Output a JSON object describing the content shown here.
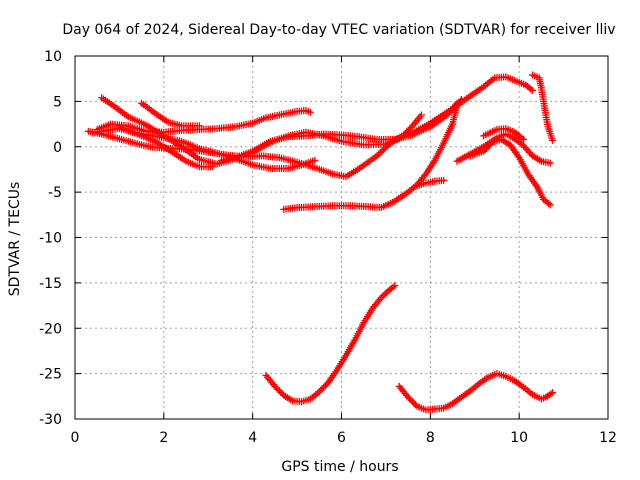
{
  "chart_data": {
    "type": "scatter",
    "title": "Day 064 of 2024, Sidereal Day-to-day VTEC variation (SDTVAR) for receiver lliv",
    "xlabel": "GPS time / hours",
    "ylabel": "SDTVAR / TECUs",
    "xlim": [
      0,
      12
    ],
    "ylim": [
      -30,
      10
    ],
    "xticks": [
      0,
      2,
      4,
      6,
      8,
      10,
      12
    ],
    "yticks": [
      -30,
      -25,
      -20,
      -15,
      -10,
      -5,
      0,
      5,
      10
    ],
    "grid": true,
    "legend": "none",
    "marker": "plus",
    "series_color": "#ff0000",
    "series": [
      {
        "points": [
          [
            0.6,
            5.4
          ],
          [
            0.9,
            4.4
          ],
          [
            1.2,
            3.3
          ],
          [
            1.6,
            2.4
          ],
          [
            2.0,
            1.2
          ],
          [
            2.4,
            0.0
          ],
          [
            2.8,
            -1.4
          ],
          [
            3.2,
            -1.9
          ],
          [
            3.6,
            -1.3
          ],
          [
            4.0,
            -0.6
          ],
          [
            4.4,
            0.5
          ],
          [
            4.8,
            1.2
          ],
          [
            5.2,
            1.6
          ],
          [
            5.6,
            1.2
          ],
          [
            6.0,
            0.6
          ],
          [
            6.5,
            0.2
          ],
          [
            7.0,
            0.3
          ],
          [
            7.6,
            1.5
          ],
          [
            8.0,
            2.6
          ],
          [
            8.5,
            4.2
          ],
          [
            8.9,
            5.6
          ],
          [
            9.2,
            6.6
          ],
          [
            9.45,
            7.6
          ],
          [
            9.7,
            7.7
          ],
          [
            9.95,
            7.2
          ],
          [
            10.15,
            6.8
          ],
          [
            10.3,
            6.2
          ]
        ]
      },
      {
        "points": [
          [
            0.3,
            1.7
          ],
          [
            0.6,
            1.4
          ],
          [
            0.9,
            1.0
          ],
          [
            1.2,
            0.6
          ],
          [
            1.5,
            0.2
          ],
          [
            1.8,
            -0.1
          ],
          [
            2.2,
            -0.2
          ],
          [
            2.6,
            -0.3
          ],
          [
            3.0,
            -0.6
          ],
          [
            3.4,
            -0.9
          ],
          [
            3.8,
            -1.1
          ],
          [
            4.2,
            -1.0
          ],
          [
            4.6,
            -1.2
          ],
          [
            5.0,
            -1.7
          ],
          [
            5.4,
            -2.3
          ],
          [
            5.8,
            -3.0
          ],
          [
            6.1,
            -3.3
          ],
          [
            6.4,
            -2.4
          ],
          [
            6.8,
            -1.0
          ],
          [
            7.1,
            0.4
          ],
          [
            7.4,
            1.3
          ],
          [
            7.6,
            2.3
          ],
          [
            7.8,
            3.5
          ]
        ]
      },
      {
        "points": [
          [
            0.5,
            1.9
          ],
          [
            0.8,
            2.5
          ],
          [
            1.2,
            2.3
          ],
          [
            1.6,
            1.7
          ],
          [
            2.0,
            1.6
          ],
          [
            2.4,
            1.8
          ],
          [
            2.8,
            1.9
          ],
          [
            3.2,
            2.0
          ],
          [
            3.6,
            2.2
          ],
          [
            4.0,
            2.6
          ],
          [
            4.3,
            3.2
          ],
          [
            4.7,
            3.6
          ],
          [
            5.0,
            3.9
          ],
          [
            5.2,
            4.0
          ],
          [
            5.3,
            3.8
          ]
        ]
      },
      {
        "points": [
          [
            0.4,
            1.5
          ],
          [
            0.7,
            1.8
          ],
          [
            1.0,
            2.0
          ],
          [
            1.3,
            1.6
          ],
          [
            1.6,
            1.3
          ],
          [
            2.0,
            1.0
          ],
          [
            2.4,
            0.6
          ],
          [
            2.8,
            -0.2
          ],
          [
            3.2,
            -0.7
          ],
          [
            3.6,
            -1.3
          ],
          [
            4.0,
            -2.0
          ],
          [
            4.4,
            -2.4
          ],
          [
            4.8,
            -2.4
          ],
          [
            5.1,
            -2.0
          ],
          [
            5.4,
            -1.5
          ]
        ]
      },
      {
        "points": [
          [
            1.5,
            4.8
          ],
          [
            1.8,
            3.7
          ],
          [
            2.1,
            2.7
          ],
          [
            2.4,
            2.3
          ],
          [
            2.8,
            2.3
          ]
        ]
      },
      {
        "points": [
          [
            1.0,
            2.2
          ],
          [
            1.4,
            1.4
          ],
          [
            1.8,
            0.6
          ],
          [
            2.2,
            -0.6
          ],
          [
            2.5,
            -1.6
          ],
          [
            2.8,
            -2.2
          ],
          [
            3.1,
            -2.2
          ]
        ]
      },
      {
        "points": [
          [
            3.3,
            -1.5
          ],
          [
            3.6,
            -1.2
          ],
          [
            4.0,
            -0.5
          ],
          [
            4.4,
            0.6
          ],
          [
            4.8,
            1.1
          ],
          [
            5.2,
            1.2
          ],
          [
            5.6,
            1.4
          ],
          [
            6.0,
            1.3
          ],
          [
            6.4,
            1.1
          ],
          [
            6.8,
            0.8
          ],
          [
            7.2,
            0.8
          ],
          [
            7.6,
            1.3
          ],
          [
            8.0,
            2.2
          ],
          [
            8.4,
            3.6
          ],
          [
            8.6,
            4.8
          ]
        ]
      },
      {
        "points": [
          [
            4.7,
            -6.9
          ],
          [
            5.0,
            -6.7
          ],
          [
            5.4,
            -6.6
          ],
          [
            5.8,
            -6.5
          ],
          [
            6.2,
            -6.5
          ],
          [
            6.6,
            -6.6
          ],
          [
            6.9,
            -6.7
          ],
          [
            7.2,
            -6.0
          ],
          [
            7.5,
            -5.0
          ],
          [
            7.7,
            -4.2
          ],
          [
            7.9,
            -3.0
          ],
          [
            8.1,
            -1.5
          ],
          [
            8.3,
            0.4
          ],
          [
            8.5,
            2.5
          ],
          [
            8.6,
            4.5
          ],
          [
            8.7,
            5.2
          ]
        ]
      },
      {
        "points": [
          [
            7.7,
            -4.3
          ],
          [
            7.9,
            -4.0
          ],
          [
            8.1,
            -3.8
          ],
          [
            8.3,
            -3.7
          ]
        ]
      },
      {
        "points": [
          [
            8.6,
            -1.6
          ],
          [
            8.9,
            -0.8
          ],
          [
            9.2,
            0.0
          ],
          [
            9.5,
            1.0
          ],
          [
            9.7,
            1.4
          ],
          [
            9.9,
            0.9
          ],
          [
            10.1,
            0.1
          ],
          [
            10.3,
            -1.0
          ],
          [
            10.5,
            -1.6
          ],
          [
            10.7,
            -1.8
          ]
        ]
      },
      {
        "points": [
          [
            8.9,
            -1.0
          ],
          [
            9.2,
            -0.5
          ],
          [
            9.4,
            0.5
          ],
          [
            9.6,
            0.8
          ],
          [
            9.8,
            0.2
          ],
          [
            10.0,
            -1.2
          ],
          [
            10.2,
            -3.0
          ],
          [
            10.4,
            -4.4
          ],
          [
            10.55,
            -5.8
          ],
          [
            10.7,
            -6.4
          ]
        ]
      },
      {
        "points": [
          [
            9.2,
            1.2
          ],
          [
            9.5,
            1.9
          ],
          [
            9.7,
            2.0
          ],
          [
            9.9,
            1.6
          ],
          [
            10.1,
            0.8
          ]
        ]
      },
      {
        "points": [
          [
            10.3,
            7.9
          ],
          [
            10.45,
            7.6
          ],
          [
            10.5,
            6.5
          ],
          [
            10.55,
            5.0
          ],
          [
            10.6,
            3.5
          ],
          [
            10.65,
            2.2
          ],
          [
            10.75,
            0.7
          ]
        ]
      },
      {
        "points": [
          [
            4.3,
            -25.2
          ],
          [
            4.5,
            -26.4
          ],
          [
            4.7,
            -27.4
          ],
          [
            4.9,
            -28.0
          ],
          [
            5.1,
            -28.1
          ],
          [
            5.3,
            -27.8
          ],
          [
            5.5,
            -27.0
          ],
          [
            5.7,
            -26.0
          ],
          [
            5.9,
            -24.6
          ],
          [
            6.1,
            -23.0
          ],
          [
            6.3,
            -21.3
          ],
          [
            6.5,
            -19.4
          ],
          [
            6.7,
            -17.8
          ],
          [
            6.9,
            -16.6
          ],
          [
            7.05,
            -15.9
          ],
          [
            7.2,
            -15.3
          ]
        ]
      },
      {
        "points": [
          [
            7.3,
            -26.4
          ],
          [
            7.5,
            -27.6
          ],
          [
            7.7,
            -28.6
          ],
          [
            7.9,
            -29.0
          ],
          [
            8.1,
            -28.9
          ],
          [
            8.3,
            -28.8
          ],
          [
            8.5,
            -28.3
          ],
          [
            8.7,
            -27.6
          ],
          [
            8.9,
            -26.9
          ],
          [
            9.1,
            -26.1
          ],
          [
            9.3,
            -25.4
          ],
          [
            9.5,
            -25.0
          ],
          [
            9.7,
            -25.3
          ],
          [
            9.9,
            -25.8
          ],
          [
            10.1,
            -26.5
          ],
          [
            10.3,
            -27.3
          ],
          [
            10.5,
            -27.8
          ],
          [
            10.6,
            -27.6
          ],
          [
            10.75,
            -27.1
          ]
        ]
      }
    ]
  }
}
